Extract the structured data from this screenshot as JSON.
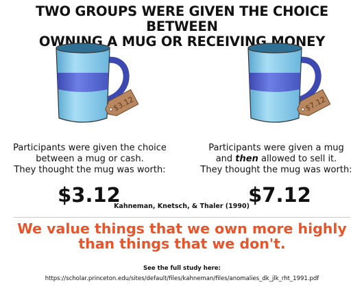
{
  "title": {
    "line1": "TWO GROUPS WERE GIVEN THE CHOICE BETWEEN",
    "line2": "OWNING A MUG OR RECEIVING MONEY"
  },
  "left": {
    "tag_text": "$3.12",
    "line1": "Participants were given the choice",
    "line2": "between a mug or cash.",
    "line3": "They thought the mug was worth:",
    "price": "$3.12"
  },
  "right": {
    "tag_text": "$7.12",
    "line1": "Participants were given a mug",
    "line2_pre": "and ",
    "line2_em": "then",
    "line2_post": " allowed to sell it.",
    "line3": "They thought the mug was worth:",
    "price": "$7.12"
  },
  "citation": "Kahneman, Knetsch, & Thaler (1990)",
  "conclusion": {
    "line1": "We value things that we own more highly",
    "line2": "than things that we don't."
  },
  "footer": {
    "label": "See the full study here:",
    "url": "https://scholar.princeton.edu/sites/default/files/kahneman/files/anomalies_dk_jlk_rht_1991.pdf"
  },
  "colors": {
    "mug_light": "#8fd0ee",
    "mug_band": "#5b6fd6",
    "accent": "#e8552b",
    "tag": "#b9875f"
  },
  "icons": [
    "mug-icon",
    "price-tag-icon"
  ]
}
